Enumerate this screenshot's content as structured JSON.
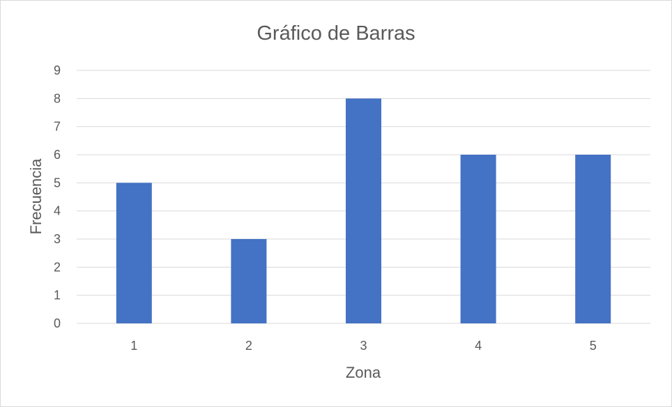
{
  "chart_data": {
    "type": "bar",
    "title": "Gráfico de Barras",
    "xlabel": "Zona",
    "ylabel": "Frecuencia",
    "categories": [
      "1",
      "2",
      "3",
      "4",
      "5"
    ],
    "values": [
      5,
      3,
      8,
      6,
      6
    ],
    "ylim": [
      0,
      9
    ],
    "yticks": [
      "0",
      "1",
      "2",
      "3",
      "4",
      "5",
      "6",
      "7",
      "8",
      "9"
    ],
    "grid": true,
    "bar_color": "#4472c4",
    "grid_color": "#d9d9d9",
    "text_color": "#595959"
  }
}
